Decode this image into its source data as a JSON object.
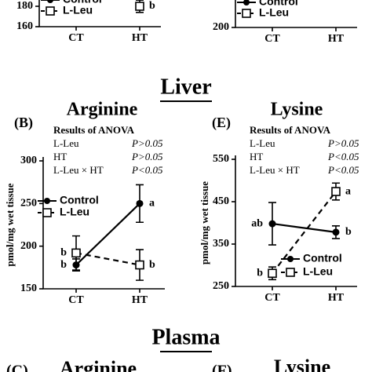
{
  "chart_data": [
    {
      "type": "line",
      "categories": [
        "CT",
        "HT"
      ],
      "ylim": [
        160,
        180
      ],
      "yticks": [
        160,
        180
      ],
      "series": [
        {
          "name": "Control",
          "color": "#000000",
          "values": [
            null,
            null
          ],
          "errors": [
            null,
            null
          ],
          "letters": [
            null,
            null
          ]
        },
        {
          "name": "L-Leu",
          "color": "#000000",
          "values": [
            null,
            180
          ],
          "errors": [
            null,
            6
          ],
          "letters": [
            null,
            "b"
          ]
        }
      ]
    },
    {
      "type": "line",
      "categories": [
        "CT",
        "HT"
      ],
      "ylim": [
        200,
        300
      ],
      "yticks": [
        200
      ],
      "series": [
        {
          "name": "Control",
          "color": "#000000",
          "values": [
            null,
            null
          ],
          "errors": [
            null,
            null
          ],
          "letters": [
            null,
            null
          ]
        },
        {
          "name": "L-Leu",
          "color": "#000000",
          "values": [
            null,
            null
          ],
          "errors": [
            null,
            null
          ],
          "letters": [
            null,
            null
          ]
        }
      ]
    },
    {
      "type": "line",
      "panel": "(B)",
      "title": "Arginine",
      "y_label": "pmol/mg wet tissue",
      "anova": {
        "title": "Results of ANOVA",
        "rows": [
          [
            "L-Leu",
            "P>0.05"
          ],
          [
            "HT",
            "P>0.05"
          ],
          [
            "L-Leu × HT",
            "P<0.05"
          ]
        ]
      },
      "categories": [
        "CT",
        "HT"
      ],
      "ylim": [
        150,
        300
      ],
      "yticks": [
        150,
        200,
        250,
        300
      ],
      "series": [
        {
          "name": "Control",
          "color": "#000000",
          "values": [
            178,
            250
          ],
          "errors": [
            7,
            22
          ],
          "letters": [
            "b",
            "a"
          ]
        },
        {
          "name": "L-Leu",
          "color": "#000000",
          "values": [
            192,
            178
          ],
          "errors": [
            20,
            18
          ],
          "letters": [
            "b",
            "b"
          ]
        }
      ]
    },
    {
      "type": "line",
      "panel": "(E)",
      "title": "Lysine",
      "y_label": "pmol/mg wet tissue",
      "anova": {
        "title": "Results of ANOVA",
        "rows": [
          [
            "L-Leu",
            "P>0.05"
          ],
          [
            "HT",
            "P<0.05"
          ],
          [
            "L-Leu × HT",
            "P<0.05"
          ]
        ]
      },
      "categories": [
        "CT",
        "HT"
      ],
      "ylim": [
        250,
        550
      ],
      "yticks": [
        250,
        350,
        450,
        550
      ],
      "series": [
        {
          "name": "Control",
          "color": "#000000",
          "values": [
            398,
            378
          ],
          "errors": [
            50,
            15
          ],
          "letters": [
            "ab",
            "b"
          ]
        },
        {
          "name": "L-Leu",
          "color": "#000000",
          "values": [
            281,
            474
          ],
          "errors": [
            15,
            20
          ],
          "letters": [
            "b",
            "a"
          ]
        }
      ]
    }
  ],
  "sections": [
    "Liver",
    "Plasma"
  ],
  "bottom_panels": [
    {
      "panel": "(C)",
      "title": "Arginine"
    },
    {
      "panel": "(F)",
      "title": "Lysine"
    }
  ]
}
